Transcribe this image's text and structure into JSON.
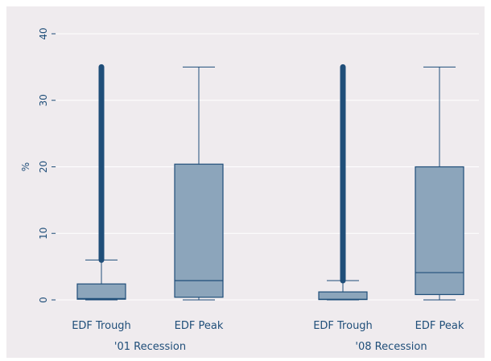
{
  "chart_data": {
    "type": "box",
    "title": "",
    "ylabel": "%",
    "ylim": [
      0,
      40
    ],
    "yticks": [
      0,
      10,
      20,
      30,
      40
    ],
    "grid": true,
    "colors": {
      "background_outer": "#ffffff",
      "plot_background": "#efebee",
      "box_fill": "#8ca5bb",
      "line": "#1f4e79",
      "gridline": "#ffffff",
      "text": "#1f4e79"
    },
    "groups": [
      {
        "label": "'01 Recession",
        "boxes": [
          {
            "label": "EDF Trough",
            "min": 0,
            "q1": 0.1,
            "median": 0.2,
            "q3": 2.4,
            "max": 6,
            "outliers_range": [
              6,
              35
            ],
            "outlier_cap": 35
          },
          {
            "label": "EDF Peak",
            "min": 0,
            "q1": 0.4,
            "median": 2.9,
            "q3": 20.4,
            "max": 35,
            "outliers_range": null
          }
        ]
      },
      {
        "label": "'08 Recession",
        "boxes": [
          {
            "label": "EDF Trough",
            "min": 0,
            "q1": 0.05,
            "median": 0.1,
            "q3": 1.2,
            "max": 2.9,
            "outliers_range": [
              2.9,
              35
            ],
            "outlier_cap": 35
          },
          {
            "label": "EDF Peak",
            "min": 0,
            "q1": 0.8,
            "median": 4.1,
            "q3": 20,
            "max": 35,
            "outliers_range": null
          }
        ]
      }
    ]
  }
}
